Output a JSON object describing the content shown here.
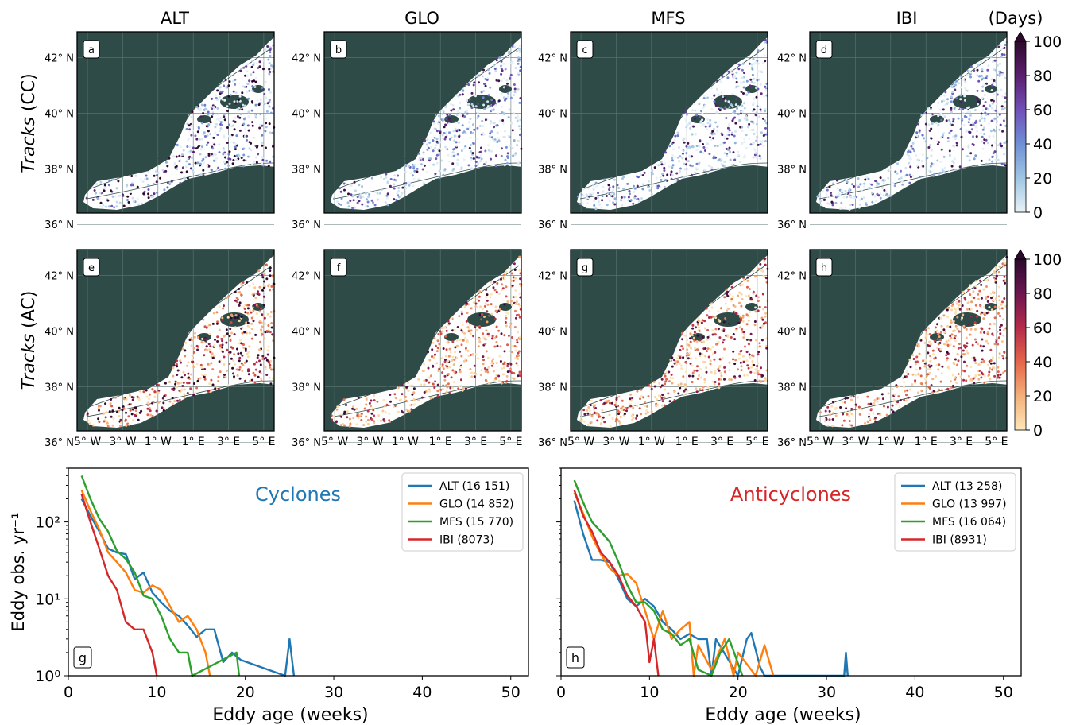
{
  "columns": [
    "ALT",
    "GLO",
    "MFS",
    "IBI"
  ],
  "rows": [
    {
      "italic": "Tracks",
      "label": " (CC)"
    },
    {
      "italic": "Tracks",
      "label": " (AC)"
    }
  ],
  "map_letters": [
    "a",
    "b",
    "c",
    "d",
    "e",
    "f",
    "g",
    "h"
  ],
  "lat_ticks": [
    "42° N",
    "40° N",
    "38° N",
    "36° N"
  ],
  "lon_ticks": [
    "5° W",
    "3° W",
    "1° W",
    "1° E",
    "3° E",
    "5° E"
  ],
  "colorbar": {
    "title": "(Days)",
    "ticks": [
      "100",
      "80",
      "60",
      "40",
      "20",
      "0"
    ],
    "cc_colors": [
      "#e8f1f7",
      "#9fc6e2",
      "#6f8fd6",
      "#7050b8",
      "#5a1f6e",
      "#2d0a2b"
    ],
    "ac_colors": [
      "#fde7b8",
      "#f4b07a",
      "#e4664a",
      "#b52a4a",
      "#6b1650",
      "#2a0a2c"
    ]
  },
  "colors": {
    "land": "#2e4b47",
    "ALT": "#1f77b4",
    "GLO": "#ff7f0e",
    "MFS": "#2ca02c",
    "IBI": "#d62728",
    "cyclones_title": "#1f77b4",
    "anticyclones_title": "#d62728"
  },
  "chart_data": [
    {
      "type": "line",
      "panel": "g",
      "title": "Cyclones",
      "xlabel": "Eddy age (weeks)",
      "ylabel": "Eddy obs. yr⁻¹",
      "xlim": [
        0,
        52
      ],
      "ylim": [
        1,
        500
      ],
      "yscale": "log",
      "xticks": [
        "0",
        "10",
        "20",
        "30",
        "40",
        "50"
      ],
      "yticks": [
        "10⁰",
        "10¹",
        "10²"
      ],
      "legend_loc": "top-right",
      "series": [
        {
          "name": "ALT (16 151)",
          "x": [
            1.5,
            2.5,
            3.5,
            4.5,
            5.5,
            6.5,
            7.5,
            8.5,
            9.5,
            10.5,
            11.5,
            12.5,
            13.5,
            14.5,
            15.5,
            16.5,
            17.5,
            18.5,
            19.5,
            24.5,
            25,
            25.5
          ],
          "y": [
            200,
            120,
            75,
            45,
            40,
            38,
            18,
            22,
            12,
            9,
            7,
            6,
            4.5,
            3.2,
            4,
            4,
            1.5,
            2,
            1.6,
            1,
            3,
            1
          ]
        },
        {
          "name": "GLO (14 852)",
          "x": [
            1.5,
            2.5,
            3.5,
            4.5,
            5.5,
            6.5,
            7.5,
            8.5,
            9.5,
            10.5,
            11.5,
            12.5,
            13.5,
            14.5,
            15.5,
            16
          ],
          "y": [
            260,
            140,
            80,
            40,
            30,
            22,
            13,
            12,
            15,
            13,
            8,
            5,
            6,
            4,
            2,
            1
          ]
        },
        {
          "name": "MFS (15 770)",
          "x": [
            1.5,
            2.5,
            3.5,
            4.5,
            5.5,
            6.5,
            7.5,
            8.5,
            9.5,
            10.5,
            11.5,
            12.5,
            13.5,
            14,
            19,
            19.3
          ],
          "y": [
            400,
            200,
            110,
            75,
            42,
            33,
            22,
            11,
            10,
            6,
            3,
            2,
            2,
            1,
            2,
            1
          ]
        },
        {
          "name": "IBI (8073)",
          "x": [
            1.5,
            2.5,
            3.5,
            4.5,
            5.5,
            6.5,
            7.5,
            8.5,
            9.5,
            10
          ],
          "y": [
            230,
            100,
            45,
            20,
            13,
            5,
            4,
            4,
            2,
            1
          ]
        }
      ]
    },
    {
      "type": "line",
      "panel": "h",
      "title": "Anticyclones",
      "xlabel": "Eddy age (weeks)",
      "ylabel": "",
      "xlim": [
        0,
        52
      ],
      "ylim": [
        1,
        500
      ],
      "yscale": "log",
      "xticks": [
        "0",
        "10",
        "20",
        "30",
        "40",
        "50"
      ],
      "legend_loc": "top-right",
      "series": [
        {
          "name": "ALT (13 258)",
          "x": [
            1.5,
            2.5,
            3.5,
            4.5,
            5.5,
            6.5,
            7.5,
            8.5,
            9.5,
            10.5,
            11.5,
            12.5,
            13.5,
            14.5,
            15.5,
            16.5,
            17,
            17.5,
            20,
            21,
            21.5,
            22.5,
            23,
            32,
            32.2,
            32.4
          ],
          "y": [
            190,
            70,
            32,
            32,
            30,
            18,
            10,
            8,
            10,
            8,
            5,
            4,
            3,
            3.5,
            3,
            3,
            1,
            3,
            1,
            3,
            3.6,
            1.3,
            1,
            1,
            2,
            1
          ]
        },
        {
          "name": "GLO (13 997)",
          "x": [
            1.5,
            2.5,
            3.5,
            4.5,
            5.5,
            6.5,
            7.5,
            8.5,
            9.5,
            10.5,
            11.5,
            12.5,
            13.5,
            14.5,
            15,
            15.5,
            17,
            18.5,
            19.5,
            20,
            22,
            23,
            24
          ],
          "y": [
            240,
            130,
            65,
            38,
            25,
            20,
            21,
            16,
            7,
            3,
            7,
            3,
            4,
            5,
            1,
            2.5,
            1.2,
            3,
            1,
            2,
            1,
            2.5,
            1
          ]
        },
        {
          "name": "MFS (16 064)",
          "x": [
            1.5,
            2.5,
            3.5,
            4.5,
            5.5,
            6.5,
            7.5,
            8.5,
            9.5,
            10.5,
            11.5,
            12.5,
            13.5,
            14.5,
            15.5,
            17,
            18,
            19,
            20.5
          ],
          "y": [
            350,
            180,
            100,
            75,
            55,
            30,
            15,
            9,
            9,
            7,
            4,
            3.5,
            2.5,
            3,
            1.2,
            1,
            2,
            3,
            1
          ]
        },
        {
          "name": "IBI (8931)",
          "x": [
            1.5,
            2.5,
            3.5,
            4.5,
            5.5,
            6.5,
            7.5,
            8.5,
            9.5,
            10,
            10.5,
            11
          ],
          "y": [
            260,
            120,
            75,
            40,
            30,
            20,
            11,
            8,
            5,
            1.5,
            3,
            1
          ]
        }
      ]
    }
  ]
}
